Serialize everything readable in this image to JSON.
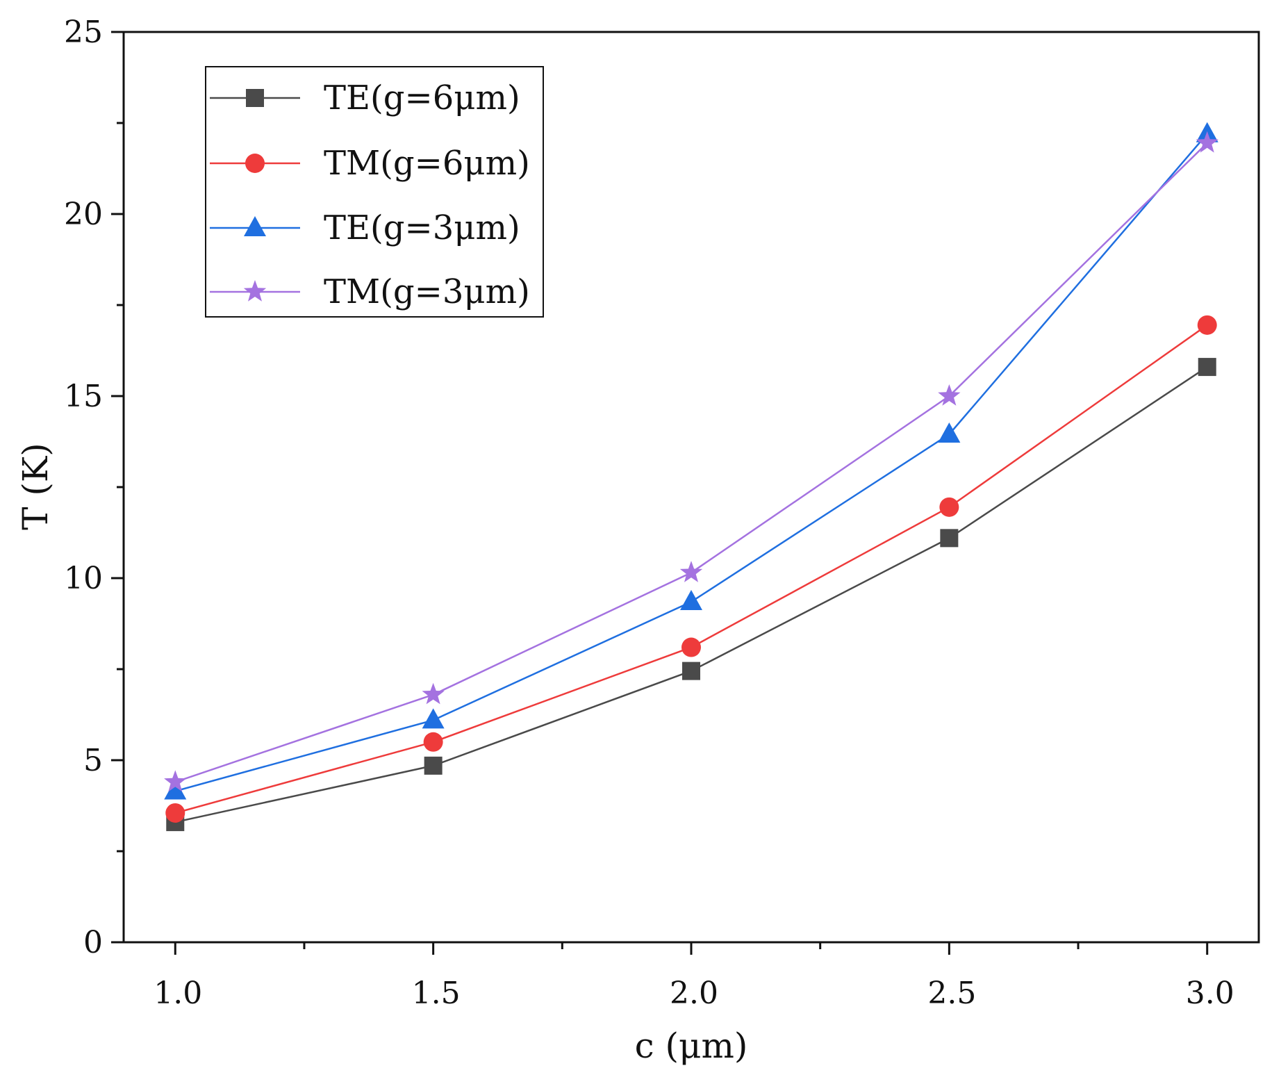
{
  "chart_data": {
    "type": "line",
    "title": "",
    "xlabel": "c (μm)",
    "ylabel": "T (K)",
    "x": [
      1.0,
      1.5,
      2.0,
      2.5,
      3.0
    ],
    "x_tick_labels": [
      "1.0",
      "1.5",
      "2.0",
      "2.5",
      "3.0"
    ],
    "y_tick_labels": [
      "0",
      "5",
      "10",
      "15",
      "20",
      "25"
    ],
    "xlim": [
      0.9,
      3.1
    ],
    "ylim": [
      0,
      25
    ],
    "legend_position": "top-left",
    "series": [
      {
        "name": "TE (g=6μm)",
        "label": "TE(g=6μm)",
        "color": "#4a4a4a",
        "marker": "square",
        "values": [
          3.3,
          4.85,
          7.45,
          11.1,
          15.8
        ]
      },
      {
        "name": "TM (g=6μm)",
        "label": "TM(g=6μm)",
        "color": "#ee3b3b",
        "marker": "circle",
        "values": [
          3.55,
          5.5,
          8.1,
          11.95,
          16.95
        ]
      },
      {
        "name": "TE (g=3μm)",
        "label": "TE(g=3μm)",
        "color": "#1f6fe0",
        "marker": "triangle",
        "values": [
          4.15,
          6.1,
          9.35,
          13.95,
          22.2
        ]
      },
      {
        "name": "TM (g=3μm)",
        "label": "TM(g=3μm)",
        "color": "#a472e0",
        "marker": "star",
        "values": [
          4.4,
          6.8,
          10.15,
          15.0,
          21.95
        ]
      }
    ]
  }
}
